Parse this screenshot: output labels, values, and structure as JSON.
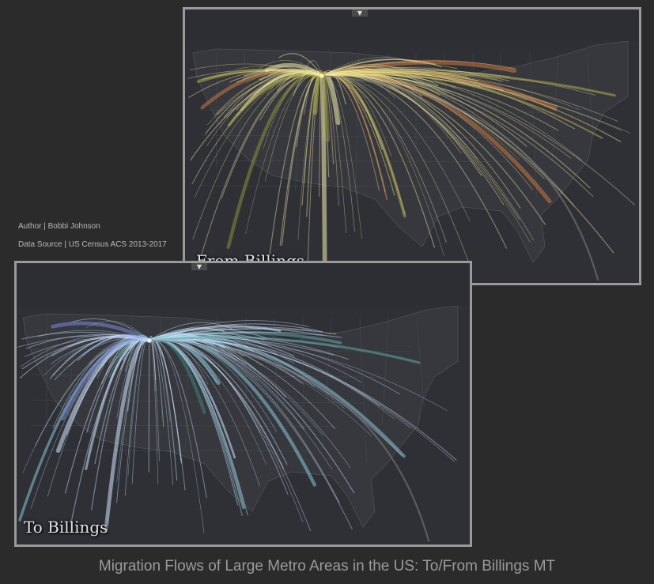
{
  "title": "Migration Flows of Large Metro Areas in the US: To/From Billings MT",
  "credits": {
    "author": "Author | Bobbi Johnson",
    "source": "Data Source | US Census ACS 2013-2017"
  },
  "panels": {
    "from": {
      "label": "From Billings",
      "collapse_icon": "triangle-down-icon",
      "flow_color": "#f2e9a0",
      "hub_color": "#fff6b0"
    },
    "to": {
      "label": "To Billings",
      "collapse_icon": "triangle-down-icon",
      "flow_color": "#cfe6ff",
      "hub_color": "#e6f6ff"
    }
  },
  "colors": {
    "background": "#2b2b2b",
    "map_land": "#3a3c41",
    "panel_border": "#9a9a9a",
    "from_highlights": [
      "#f5efb0",
      "#d9cf6a",
      "#b5ac48",
      "#c9763f",
      "#8d8c3d"
    ],
    "to_highlights": [
      "#cfe6ff",
      "#8ac7d9",
      "#5ea6a6",
      "#7a86d8",
      "#3f7f7a"
    ]
  }
}
